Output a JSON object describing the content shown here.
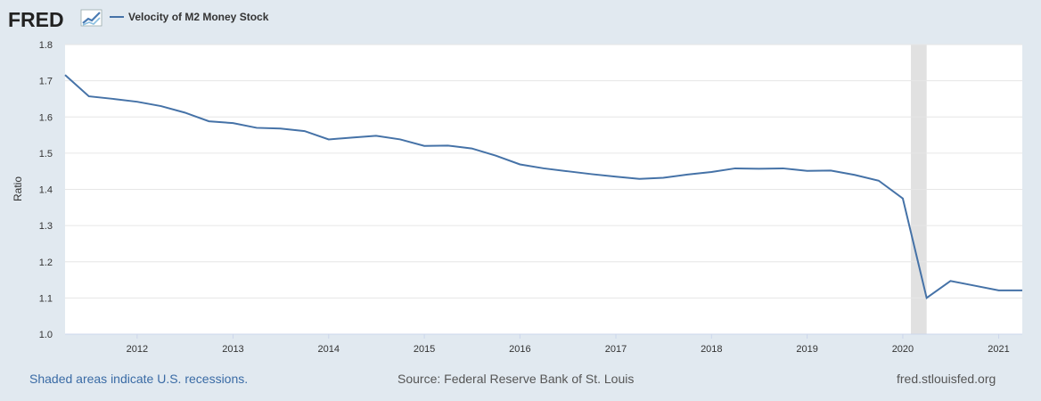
{
  "logo": {
    "text": "FRED"
  },
  "legend": {
    "series_label": "Velocity of M2 Money Stock"
  },
  "footer": {
    "recession_note": "Shaded areas indicate U.S. recessions.",
    "source": "Source: Federal Reserve Bank of St. Louis",
    "site": "fred.stlouisfed.org"
  },
  "colors": {
    "line": "#4572a7",
    "recession": "#e1e1e1",
    "background": "#e1e9f0",
    "plot": "#ffffff",
    "link": "#3a6ba5"
  },
  "chart_data": {
    "type": "line",
    "title": "",
    "xlabel": "",
    "ylabel": "Ratio",
    "ylim": [
      1.0,
      1.8
    ],
    "yticks": [
      1.0,
      1.1,
      1.2,
      1.3,
      1.4,
      1.5,
      1.6,
      1.7,
      1.8
    ],
    "xlim": [
      "2011-04-01",
      "2021-04-01"
    ],
    "xticks": [
      "2012",
      "2013",
      "2014",
      "2015",
      "2016",
      "2017",
      "2018",
      "2019",
      "2020",
      "2021"
    ],
    "grid": true,
    "recessions": [
      {
        "start": "2020-02-01",
        "end": "2020-04-01"
      }
    ],
    "series": [
      {
        "name": "Velocity of M2 Money Stock",
        "x": [
          "2011-04-01",
          "2011-07-01",
          "2011-10-01",
          "2012-01-01",
          "2012-04-01",
          "2012-07-01",
          "2012-10-01",
          "2013-01-01",
          "2013-04-01",
          "2013-07-01",
          "2013-10-01",
          "2014-01-01",
          "2014-04-01",
          "2014-07-01",
          "2014-10-01",
          "2015-01-01",
          "2015-04-01",
          "2015-07-01",
          "2015-10-01",
          "2016-01-01",
          "2016-04-01",
          "2016-07-01",
          "2016-10-01",
          "2017-01-01",
          "2017-04-01",
          "2017-07-01",
          "2017-10-01",
          "2018-01-01",
          "2018-04-01",
          "2018-07-01",
          "2018-10-01",
          "2019-01-01",
          "2019-04-01",
          "2019-07-01",
          "2019-10-01",
          "2020-01-01",
          "2020-04-01",
          "2020-07-01",
          "2020-10-01",
          "2021-01-01",
          "2021-04-01"
        ],
        "values": [
          1.716,
          1.657,
          1.65,
          1.642,
          1.63,
          1.612,
          1.588,
          1.583,
          1.57,
          1.568,
          1.561,
          1.538,
          1.543,
          1.548,
          1.538,
          1.52,
          1.521,
          1.513,
          1.493,
          1.469,
          1.458,
          1.45,
          1.442,
          1.435,
          1.429,
          1.432,
          1.441,
          1.448,
          1.458,
          1.457,
          1.458,
          1.451,
          1.452,
          1.44,
          1.424,
          1.375,
          1.1,
          1.147,
          1.134,
          1.121,
          1.121
        ]
      }
    ]
  }
}
